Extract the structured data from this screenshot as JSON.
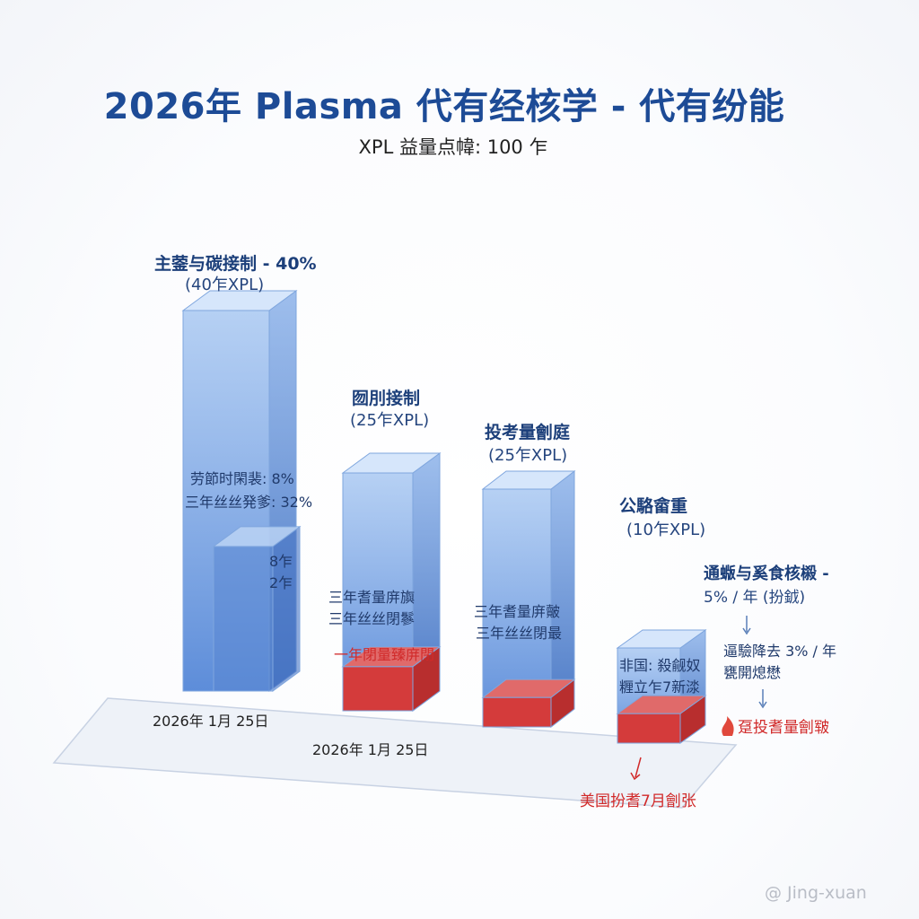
{
  "title": "2026年 Plasma 代有经核学 - 代有纷能",
  "subtitle": "XPL 益量点幃: 100 乍",
  "chart_data": {
    "type": "bar",
    "title": "2026年 Plasma 代有经核学 - 代有纷能",
    "subtitle": "XPL 益量点幃: 100 乍",
    "unit": "XPL",
    "categories": [
      "主蓥与碳接制",
      "囫刖接制",
      "投考量劊庭",
      "公駱畲重"
    ],
    "values": [
      40,
      25,
      25,
      10
    ],
    "labels": [
      "主蓥与碳接制 - 40%",
      "囫刖接制",
      "投考量劊庭",
      "公駱畲重"
    ],
    "value_labels": [
      "(40乍XPL)",
      "(25乍XPL)",
      "(25乍XPL)",
      "(10乍XPL)"
    ],
    "sub_bar": {
      "value": 8,
      "label_top": "8乍",
      "label_bottom": "2乍"
    },
    "red_segments": [
      0,
      3,
      2,
      2
    ],
    "ylim": [
      0,
      45
    ]
  },
  "annotations": {
    "bar1_inner_line1": "劳節时閑裴: 8%",
    "bar1_inner_line2": "三年丝丝発爹: 32%",
    "bar2_inner_line1": "三年耆量庰旟",
    "bar2_inner_line2": "三年丝丝閉鬖",
    "bar2_red_label": "一年閉量臻庰閉",
    "bar3_inner_line1": "三年耆量庰皾",
    "bar3_inner_line2": "三年丝丝閉最",
    "bar4_inner_line1": "非国: 殺觎奴",
    "bar4_inner_line2": "糎立乍7新渁",
    "side_title": "通蝂与奚食核榝 -",
    "side_rate": "5% / 年 (扮龯)",
    "side_line1": "逼驗降去 3% / 年",
    "side_line2": "甕開熄懋",
    "side_burn": "趸投耆量劊皲",
    "bottom_red": "美国扮耆7月劊张",
    "date1": "2026年 1月 25日",
    "date2": "2026年 1月 25日"
  },
  "watermark": "@ Jing-xuan",
  "colors": {
    "bar_front": "#6e9fe0",
    "bar_side": "#4f7fc9",
    "bar_top": "#cde0fa",
    "red": "#d63a3a",
    "title": "#1d4b96"
  }
}
